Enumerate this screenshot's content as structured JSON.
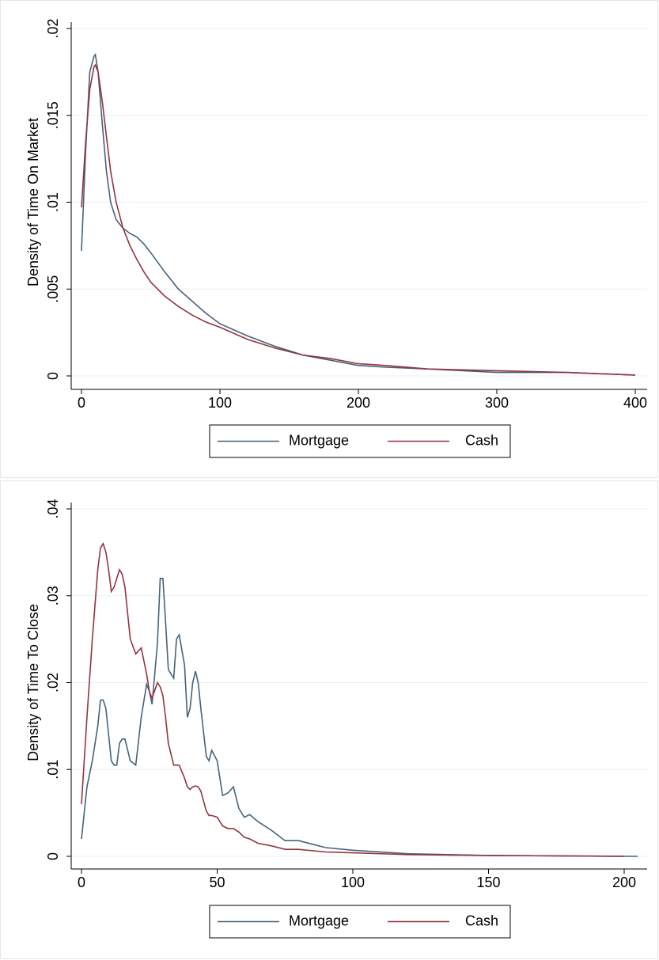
{
  "chart_data": [
    {
      "type": "line",
      "ylabel": "Density of Time On Market",
      "x": [
        0,
        3,
        6,
        9,
        10,
        12,
        15,
        18,
        21,
        25,
        30,
        35,
        40,
        45,
        50,
        60,
        70,
        80,
        90,
        100,
        120,
        140,
        160,
        180,
        200,
        220,
        250,
        300,
        350,
        400
      ],
      "series": [
        {
          "name": "Mortgage",
          "color": "#45637c",
          "values": [
            0.0072,
            0.013,
            0.0175,
            0.0184,
            0.0185,
            0.0175,
            0.0145,
            0.0118,
            0.01,
            0.009,
            0.0085,
            0.0082,
            0.008,
            0.0076,
            0.0071,
            0.006,
            0.005,
            0.0043,
            0.0036,
            0.003,
            0.0023,
            0.0017,
            0.0012,
            0.0009,
            0.0006,
            0.0005,
            0.0004,
            0.0002,
            0.0002,
            5e-05
          ]
        },
        {
          "name": "Cash",
          "color": "#94343f",
          "values": [
            0.0097,
            0.0135,
            0.0165,
            0.0178,
            0.0179,
            0.0175,
            0.0158,
            0.0138,
            0.0118,
            0.01,
            0.0085,
            0.0075,
            0.0067,
            0.006,
            0.0054,
            0.0046,
            0.004,
            0.0035,
            0.0031,
            0.0028,
            0.0021,
            0.0016,
            0.0012,
            0.001,
            0.0007,
            0.0006,
            0.0004,
            0.0003,
            0.0002,
            5e-05
          ]
        }
      ],
      "xlim": [
        0,
        400
      ],
      "xticks": [
        0,
        100,
        200,
        300,
        400
      ],
      "ylim": [
        0,
        0.02
      ],
      "yticks": [
        0,
        {
          "value": 0.005,
          "label": ".005"
        },
        {
          "value": 0.01,
          "label": ".01"
        },
        {
          "value": 0.015,
          "label": ".015"
        },
        {
          "value": 0.02,
          "label": ".02"
        }
      ],
      "grid": true
    },
    {
      "type": "line",
      "ylabel": "Density of Time To Close",
      "x": [
        0,
        2,
        4,
        6,
        7,
        8,
        9,
        10,
        11,
        12,
        13,
        14,
        15,
        16,
        18,
        20,
        22,
        24,
        25,
        26,
        28,
        29,
        30,
        31,
        32,
        34,
        35,
        36,
        38,
        39,
        40,
        41,
        42,
        43,
        44,
        46,
        47,
        48,
        50,
        52,
        54,
        56,
        58,
        60,
        62,
        65,
        70,
        75,
        80,
        90,
        100,
        120,
        150,
        200,
        205
      ],
      "series": [
        {
          "name": "Mortgage",
          "color": "#45637c",
          "values": [
            0.002,
            0.008,
            0.011,
            0.015,
            0.018,
            0.018,
            0.017,
            0.014,
            0.011,
            0.0105,
            0.0105,
            0.013,
            0.0135,
            0.0135,
            0.011,
            0.0105,
            0.016,
            0.0198,
            0.019,
            0.0175,
            0.0245,
            0.032,
            0.032,
            0.027,
            0.0215,
            0.0205,
            0.025,
            0.0255,
            0.022,
            0.016,
            0.017,
            0.02,
            0.0213,
            0.02,
            0.017,
            0.0115,
            0.011,
            0.0122,
            0.011,
            0.007,
            0.0073,
            0.008,
            0.0055,
            0.0045,
            0.0048,
            0.004,
            0.003,
            0.0018,
            0.0018,
            0.001,
            0.0007,
            0.0003,
            0.0001,
            0,
            0
          ]
        },
        {
          "name": "Cash",
          "color": "#94343f",
          "values": [
            0.006,
            0.016,
            0.025,
            0.033,
            0.0355,
            0.036,
            0.035,
            0.033,
            0.0305,
            0.031,
            0.032,
            0.033,
            0.0325,
            0.031,
            0.025,
            0.0233,
            0.024,
            0.021,
            0.019,
            0.0182,
            0.02,
            0.0195,
            0.0185,
            0.016,
            0.013,
            0.0105,
            0.0105,
            0.0105,
            0.009,
            0.008,
            0.0077,
            0.008,
            0.0081,
            0.008,
            0.0075,
            0.0052,
            0.0047,
            0.0047,
            0.0045,
            0.0035,
            0.0032,
            0.0032,
            0.0028,
            0.0022,
            0.002,
            0.0015,
            0.0012,
            0.0008,
            0.0008,
            0.0005,
            0.0004,
            0.0002,
            0.0001,
            0,
            null
          ]
        }
      ],
      "xlim": [
        0,
        200
      ],
      "xticks": [
        0,
        50,
        100,
        150,
        200
      ],
      "ylim": [
        0,
        0.04
      ],
      "yticks": [
        0,
        {
          "value": 0.01,
          "label": ".01"
        },
        {
          "value": 0.02,
          "label": ".02"
        },
        {
          "value": 0.03,
          "label": ".03"
        },
        {
          "value": 0.04,
          "label": ".04"
        }
      ],
      "grid": true
    }
  ]
}
